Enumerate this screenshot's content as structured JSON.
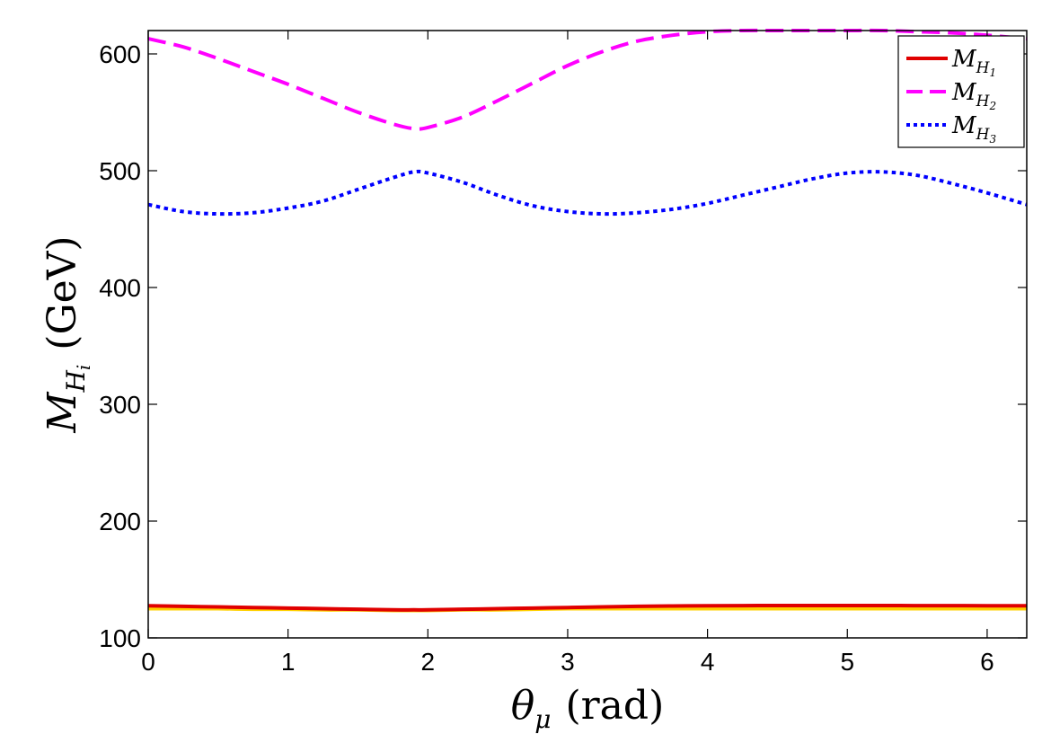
{
  "chart_data": {
    "type": "line",
    "title": "",
    "xlabel": {
      "symbol": "θ",
      "subscript": "μ",
      "unit": "(rad)"
    },
    "ylabel": {
      "symbol": "M",
      "subscript": "H",
      "subsub": "i",
      "unit": "(GeV)"
    },
    "xlim": [
      0,
      6.2832
    ],
    "ylim": [
      100,
      620
    ],
    "xticks": [
      0,
      1,
      2,
      3,
      4,
      5,
      6
    ],
    "xtick_labels": [
      "0",
      "1",
      "2",
      "3",
      "4",
      "5",
      "6"
    ],
    "yticks": [
      100,
      200,
      300,
      400,
      500,
      600
    ],
    "ytick_labels": [
      "100",
      "200",
      "300",
      "400",
      "500",
      "600"
    ],
    "grid": false,
    "legend_position": "top-right",
    "x": [
      0,
      0.25,
      0.5,
      0.75,
      1.0,
      1.25,
      1.5,
      1.75,
      1.9,
      2.0,
      2.25,
      2.5,
      2.75,
      3.0,
      3.25,
      3.5,
      3.75,
      4.0,
      4.25,
      4.5,
      4.75,
      5.0,
      5.25,
      5.5,
      5.75,
      6.0,
      6.2832
    ],
    "series": [
      {
        "name": "M_H1",
        "legend_symbol": "M",
        "legend_sub": "H",
        "legend_subsub": "1",
        "color": "#e00000",
        "style": "solid",
        "values": [
          127.5,
          127,
          126.5,
          126,
          125.5,
          125,
          124.5,
          124,
          124,
          124,
          124.5,
          125,
          125.5,
          126,
          126.5,
          127,
          127.3,
          127.5,
          127.6,
          127.7,
          127.7,
          127.7,
          127.7,
          127.6,
          127.6,
          127.5,
          127.5
        ]
      },
      {
        "name": "M_H2",
        "legend_symbol": "M",
        "legend_sub": "H",
        "legend_subsub": "2",
        "color": "#ff00ff",
        "style": "dashed",
        "values": [
          613,
          606,
          596,
          585,
          574,
          562,
          550,
          540,
          536,
          537,
          546,
          560,
          575,
          590,
          602,
          611,
          616,
          619,
          620,
          620,
          620,
          620,
          620,
          619,
          618,
          616,
          613
        ]
      },
      {
        "name": "M_H3",
        "legend_symbol": "M",
        "legend_sub": "H",
        "legend_subsub": "3",
        "color": "#0000ff",
        "style": "dotted",
        "values": [
          471,
          465,
          463,
          464,
          468,
          474,
          484,
          494,
          499,
          498,
          490,
          479,
          470,
          465,
          463,
          464,
          467,
          472,
          479,
          486,
          493,
          498,
          499,
          496,
          489,
          481,
          471
        ]
      }
    ],
    "extra_line": {
      "color": "#ffd000",
      "values": [
        125,
        125,
        125,
        124.5,
        124.5,
        124,
        124,
        123.5,
        123.5,
        123.5,
        124,
        124,
        124.5,
        125,
        125,
        125,
        125,
        125,
        125,
        125,
        125,
        125,
        125,
        125,
        125,
        125,
        125
      ]
    }
  }
}
